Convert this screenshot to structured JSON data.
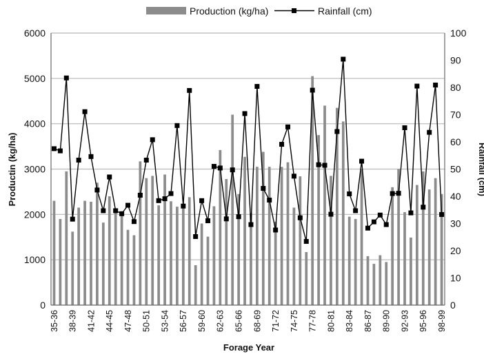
{
  "chart_data": {
    "type": "bar",
    "xlabel": "Forage Year",
    "ylabel": "Productin (kg/ha)",
    "y2label": "Rainfall (cm)",
    "ylim": [
      0,
      6000
    ],
    "y2lim": [
      0,
      100
    ],
    "yticks": [
      "0",
      "1000",
      "2000",
      "3000",
      "4000",
      "5000",
      "6000"
    ],
    "y2ticks": [
      "0",
      "10",
      "20",
      "30",
      "40",
      "50",
      "60",
      "70",
      "80",
      "90",
      "100"
    ],
    "grid": "horizontal",
    "legend_position": "top",
    "categories": [
      "35-36",
      "36-37",
      "37-38",
      "38-39",
      "39-40",
      "40-41",
      "41-42",
      "42-43",
      "43-44",
      "44-45",
      "45-46",
      "46-47",
      "47-48",
      "48-49",
      "49-50",
      "50-51",
      "51-52",
      "52-53",
      "53-54",
      "54-55",
      "55-56",
      "56-57",
      "57-58",
      "58-59",
      "59-60",
      "60-61",
      "61-62",
      "62-63",
      "63-64",
      "64-65",
      "65-66",
      "66-67",
      "67-68",
      "68-69",
      "69-70",
      "70-71",
      "71-72",
      "72-73",
      "73-74",
      "74-75",
      "75-76",
      "76-77",
      "77-78",
      "78-79",
      "79-80",
      "80-81",
      "81-82",
      "82-83",
      "83-84",
      "84-85",
      "85-86",
      "86-87",
      "87-88",
      "88-89",
      "89-90",
      "90-91",
      "91-92",
      "92-93",
      "93-94",
      "94-95",
      "95-96",
      "96-97",
      "97-98",
      "98-99"
    ],
    "tick_labels": [
      "35-36",
      "38-39",
      "41-42",
      "44-45",
      "47-48",
      "50-51",
      "53-54",
      "56-57",
      "59-60",
      "62-63",
      "65-66",
      "68-69",
      "71-72",
      "74-75",
      "77-78",
      "80-81",
      "83-84",
      "86-87",
      "89-90",
      "92-93",
      "95-96",
      "98-99"
    ],
    "series": [
      {
        "name": "Production (kg/ha)",
        "type": "bar",
        "axis": "left",
        "color": "#8c8c8c",
        "values": [
          2300,
          1900,
          2950,
          1620,
          2150,
          2300,
          2280,
          2700,
          1820,
          2400,
          2100,
          2050,
          1660,
          1540,
          3170,
          2800,
          2850,
          2200,
          2880,
          2290,
          2170,
          2220,
          2380,
          880,
          1800,
          1510,
          2180,
          3420,
          2780,
          4200,
          2450,
          3270,
          2030,
          3050,
          3380,
          3050,
          1840,
          3050,
          3150,
          2150,
          2840,
          1170,
          5050,
          3750,
          4400,
          2850,
          4350,
          4050,
          1950,
          1900,
          3000,
          1080,
          910,
          1100,
          950,
          2600,
          3000,
          2050,
          1490,
          2650,
          2950,
          2550,
          2800,
          2450
        ]
      },
      {
        "name": "Rainfall (cm)",
        "type": "line",
        "axis": "right",
        "color": "#000000",
        "marker": "square",
        "values": [
          57.5,
          56.7,
          83.5,
          31.6,
          53.3,
          71.1,
          54.6,
          42.3,
          34.7,
          47.1,
          34.7,
          33.6,
          36.7,
          30.7,
          40.4,
          53.3,
          60.8,
          38.4,
          39.1,
          41.0,
          66.0,
          36.4,
          78.9,
          25.2,
          38.4,
          31.0,
          51.0,
          50.4,
          31.7,
          49.7,
          32.5,
          70.4,
          29.6,
          80.4,
          42.9,
          38.6,
          27.6,
          59.1,
          65.5,
          47.4,
          32.1,
          23.4,
          79.0,
          51.6,
          51.4,
          33.4,
          63.8,
          90.4,
          40.9,
          34.7,
          52.9,
          28.3,
          30.6,
          33.1,
          29.6,
          41.0,
          41.1,
          65.2,
          33.9,
          80.5,
          36.0,
          63.5,
          80.9,
          33.3
        ]
      }
    ]
  }
}
